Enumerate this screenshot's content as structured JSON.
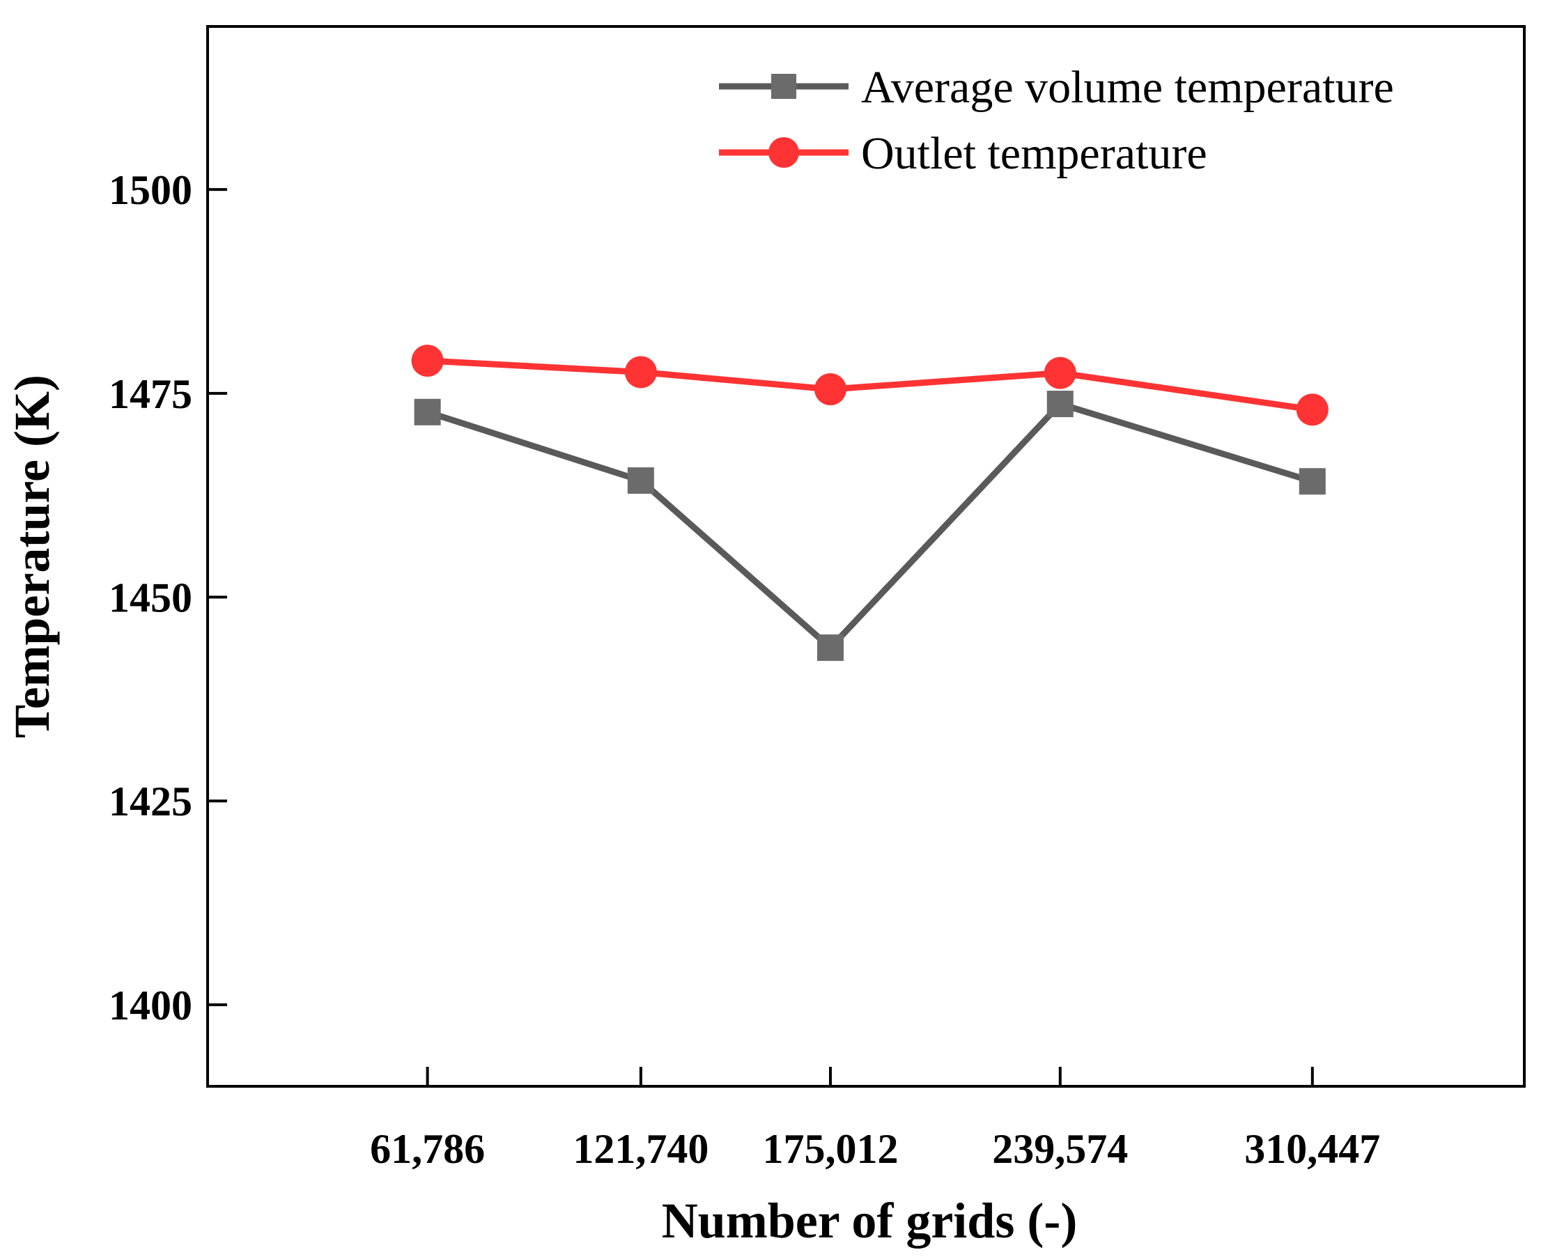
{
  "chart_data": {
    "type": "line",
    "title": "",
    "xlabel": "Number of grids (-)",
    "ylabel": "Temperature (K)",
    "categories": [
      "61,786",
      "121,740",
      "175,012",
      "239,574",
      "310,447"
    ],
    "x_positions": [
      61786,
      121740,
      175012,
      239574,
      310447
    ],
    "xlim": [
      0,
      370000
    ],
    "ylim": [
      1390,
      1520
    ],
    "yticks": [
      1400,
      1425,
      1450,
      1475,
      1500
    ],
    "grid": false,
    "legend_position": "top-right",
    "series": [
      {
        "name": "Average volume temperature",
        "marker": "square",
        "color": "#5a5a5a",
        "values": [
          1472.7,
          1464.3,
          1443.8,
          1473.7,
          1464.2
        ]
      },
      {
        "name": "Outlet temperature",
        "marker": "circle",
        "color": "#ff3333",
        "values": [
          1479.0,
          1477.6,
          1475.5,
          1477.5,
          1473.0
        ]
      }
    ]
  }
}
